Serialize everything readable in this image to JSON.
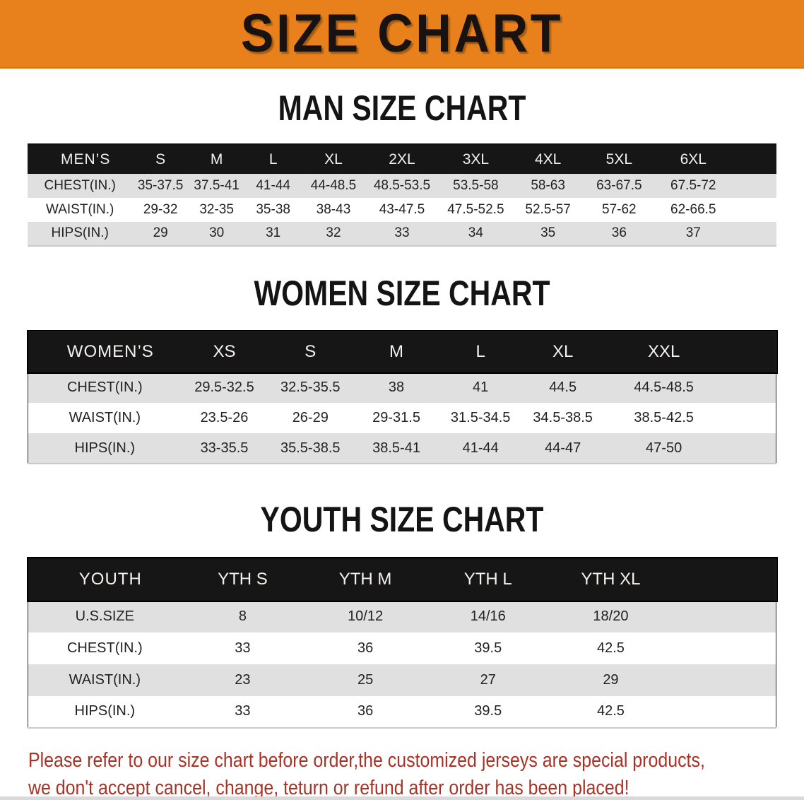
{
  "banner": {
    "title": "SIZE CHART"
  },
  "colors": {
    "banner_bg": "#e8811c",
    "band_bg": "#161616",
    "row_alt_bg": "#e0e0e0",
    "row_bg": "#ffffff",
    "footer_text": "#a93226"
  },
  "sections": [
    {
      "heading": "MAN SIZE CHART",
      "table": {
        "header_label": "MEN’S",
        "columns": [
          "S",
          "M",
          "L",
          "XL",
          "2XL",
          "3XL",
          "4XL",
          "5XL",
          "6XL"
        ],
        "rows": [
          {
            "label": "CHEST(IN.)",
            "values": [
              "35-37.5",
              "37.5-41",
              "41-44",
              "44-48.5",
              "48.5-53.5",
              "53.5-58",
              "58-63",
              "63-67.5",
              "67.5-72"
            ]
          },
          {
            "label": "WAIST(IN.)",
            "values": [
              "29-32",
              "32-35",
              "35-38",
              "38-43",
              "43-47.5",
              "47.5-52.5",
              "52.5-57",
              "57-62",
              "62-66.5"
            ]
          },
          {
            "label": "HIPS(IN.)",
            "values": [
              "29",
              "30",
              "31",
              "32",
              "33",
              "34",
              "35",
              "36",
              "37"
            ]
          }
        ]
      }
    },
    {
      "heading": "WOMEN SIZE CHART",
      "table": {
        "header_label": "WOMEN’S",
        "columns": [
          "XS",
          "S",
          "M",
          "L",
          "XL",
          "XXL"
        ],
        "rows": [
          {
            "label": "CHEST(IN.)",
            "values": [
              "29.5-32.5",
              "32.5-35.5",
              "38",
              "41",
              "44.5",
              "44.5-48.5"
            ]
          },
          {
            "label": "WAIST(IN.)",
            "values": [
              "23.5-26",
              "26-29",
              "29-31.5",
              "31.5-34.5",
              "34.5-38.5",
              "38.5-42.5"
            ]
          },
          {
            "label": "HIPS(IN.)",
            "values": [
              "33-35.5",
              "35.5-38.5",
              "38.5-41",
              "41-44",
              "44-47",
              "47-50"
            ]
          }
        ]
      }
    },
    {
      "heading": "YOUTH SIZE CHART",
      "table": {
        "header_label": "YOUTH",
        "columns": [
          "YTH S",
          "YTH M",
          "YTH L",
          "YTH XL"
        ],
        "rows": [
          {
            "label": "U.S.SIZE",
            "values": [
              "8",
              "10/12",
              "14/16",
              "18/20"
            ]
          },
          {
            "label": "CHEST(IN.)",
            "values": [
              "33",
              "36",
              "39.5",
              "42.5"
            ]
          },
          {
            "label": "WAIST(IN.)",
            "values": [
              "23",
              "25",
              "27",
              "29"
            ]
          },
          {
            "label": "HIPS(IN.)",
            "values": [
              "33",
              "36",
              "39.5",
              "42.5"
            ]
          }
        ]
      }
    }
  ],
  "footer": {
    "line1": "Please refer to our size chart before order,the customized jerseys are special products,",
    "line2": "we don't accept cancel, change, teturn or refund after order has been placed!"
  }
}
